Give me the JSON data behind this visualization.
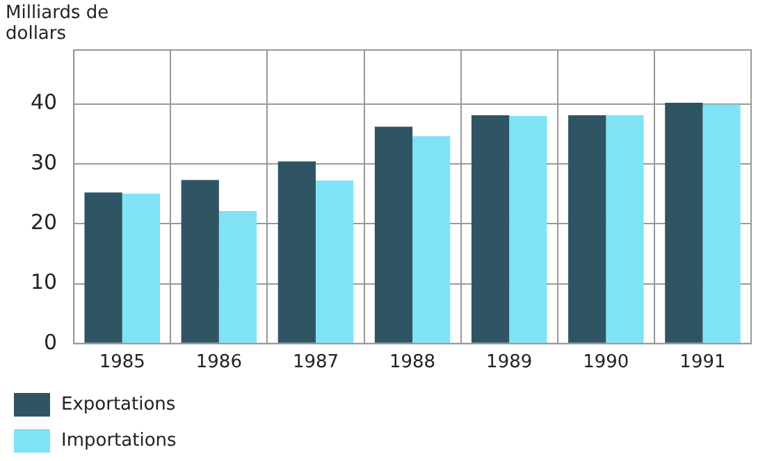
{
  "chart_data": {
    "type": "bar",
    "ylabel": "Milliards de dollars",
    "categories": [
      "1985",
      "1986",
      "1987",
      "1988",
      "1989",
      "1990",
      "1991"
    ],
    "series": [
      {
        "name": "Exportations",
        "color": "#2f5564",
        "values": [
          25.2,
          27.3,
          30.4,
          36.2,
          38.1,
          38.1,
          40.2
        ]
      },
      {
        "name": "Importations",
        "color": "#7fe3f5",
        "values": [
          25.0,
          22.1,
          27.2,
          34.6,
          38.0,
          38.1,
          39.9
        ]
      }
    ],
    "ylim": [
      0,
      49
    ],
    "yticks": [
      0,
      10,
      20,
      30,
      40
    ],
    "grid": true,
    "legend": "bottom left"
  }
}
